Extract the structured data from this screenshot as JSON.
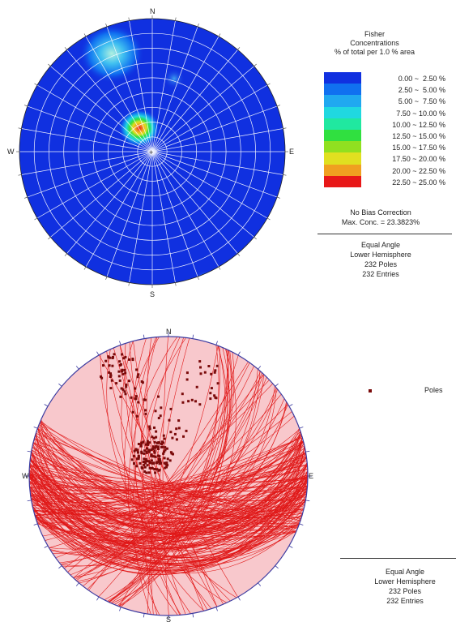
{
  "top_plot": {
    "compass": {
      "north": "N",
      "south": "S",
      "east": "E",
      "west": "W"
    },
    "legend": {
      "title_lines": [
        "Fisher",
        "Concentrations",
        "% of total per 1.0 % area"
      ],
      "ranges": [
        {
          "label": "0.00 ~  2.50 %",
          "color": "#1030e0"
        },
        {
          "label": "2.50 ~  5.00 %",
          "color": "#1070f0"
        },
        {
          "label": "5.00 ~  7.50 %",
          "color": "#20a8f0"
        },
        {
          "label": "7.50 ~ 10.00 %",
          "color": "#20d8e0"
        },
        {
          "label": "10.00 ~ 12.50 %",
          "color": "#20e8a0"
        },
        {
          "label": "12.50 ~ 15.00 %",
          "color": "#30e040"
        },
        {
          "label": "15.00 ~ 17.50 %",
          "color": "#90e020"
        },
        {
          "label": "17.50 ~ 20.00 %",
          "color": "#e0e020"
        },
        {
          "label": "20.00 ~ 22.50 %",
          "color": "#f0a020"
        },
        {
          "label": "22.50 ~ 25.00 %",
          "color": "#e81818"
        }
      ],
      "bias_note": "No Bias Correction",
      "max_conc": "Max. Conc. = 23.3823%"
    },
    "info_lines": [
      "Equal Angle",
      "Lower Hemisphere",
      "232 Poles",
      "232 Entries"
    ]
  },
  "bottom_plot": {
    "compass": {
      "north": "N",
      "south": "S",
      "east": "E",
      "west": "W"
    },
    "legend_label": "Poles",
    "pole_color": "#7a0a0a",
    "plane_color": "#e01818",
    "fill_color": "#f8c8cc",
    "info_lines": [
      "Equal Angle",
      "Lower Hemisphere",
      "232 Poles",
      "232 Entries"
    ]
  }
}
